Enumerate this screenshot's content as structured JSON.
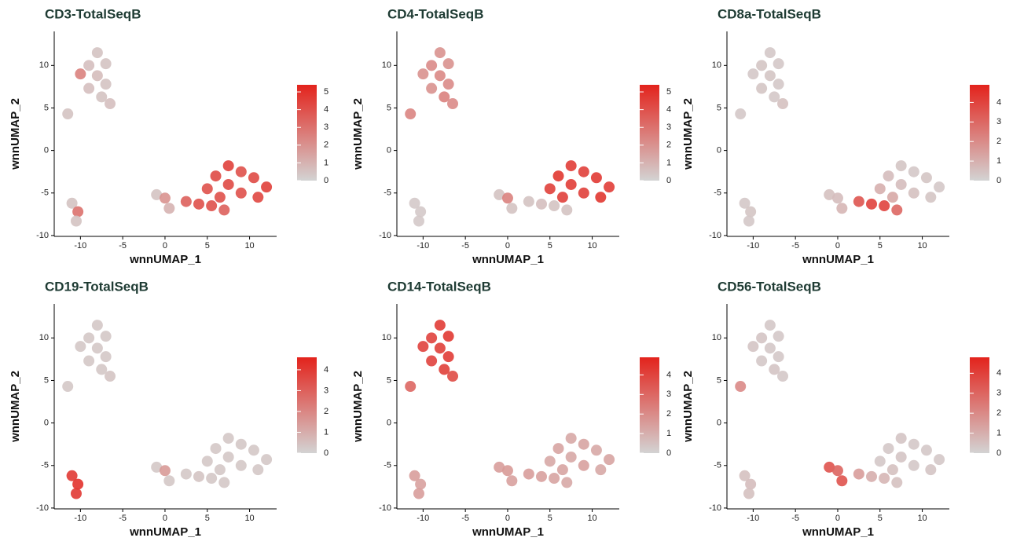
{
  "chart_data": [
    {
      "type": "scatter",
      "title": "CD3-TotalSeqB",
      "xlabel": "wnnUMAP_1",
      "ylabel": "wnnUMAP_2",
      "x": [
        -8,
        -9,
        -7,
        -8,
        -10,
        -7,
        -9,
        -7.5,
        -6.5,
        -11.5,
        -11,
        -10.3,
        -10.5,
        -1,
        0,
        0.5,
        2.5,
        4,
        5.5,
        7,
        5,
        6,
        7.5,
        9,
        10.5,
        12,
        11,
        9,
        7.5,
        6.5
      ],
      "y": [
        11.5,
        10,
        10.2,
        8.8,
        9,
        7.8,
        7.3,
        6.3,
        5.5,
        4.3,
        -6.2,
        -7.2,
        -8.3,
        -5.2,
        -5.6,
        -6.8,
        -6,
        -6.3,
        -6.5,
        -7,
        -4.5,
        -3,
        -1.8,
        -2.5,
        -3.2,
        -4.3,
        -5.5,
        -5,
        -4,
        -5.5
      ],
      "values": [
        0.5,
        0.6,
        0.5,
        0.7,
        2.5,
        0.5,
        0.6,
        0.5,
        0.6,
        0.5,
        0.5,
        3,
        0.5,
        0.5,
        2,
        1,
        3.5,
        4,
        4,
        3.5,
        4,
        4.2,
        4.5,
        4,
        4.2,
        4.5,
        4.3,
        4,
        4.2,
        4
      ],
      "xlim": [
        -13.1,
        13.2
      ],
      "ylim": [
        -10.1,
        14
      ],
      "xticks": [
        -10,
        -5,
        0,
        5,
        10
      ],
      "yticks": [
        -10,
        -5,
        0,
        5,
        10
      ],
      "clim": [
        0,
        5.4
      ],
      "cticks": [
        0,
        1,
        2,
        3,
        4,
        5
      ],
      "low_color": "#d3d3d3",
      "high_color": "#e3231c"
    },
    {
      "type": "scatter",
      "title": "CD4-TotalSeqB",
      "xlabel": "wnnUMAP_1",
      "ylabel": "wnnUMAP_2",
      "x": [
        -8,
        -9,
        -7,
        -8,
        -10,
        -7,
        -9,
        -7.5,
        -6.5,
        -11.5,
        -11,
        -10.3,
        -10.5,
        -1,
        0,
        0.5,
        2.5,
        4,
        5.5,
        7,
        5,
        6,
        7.5,
        9,
        10.5,
        12,
        11,
        9,
        7.5,
        6.5
      ],
      "y": [
        11.5,
        10,
        10.2,
        8.8,
        9,
        7.8,
        7.3,
        6.3,
        5.5,
        4.3,
        -6.2,
        -7.2,
        -8.3,
        -5.2,
        -5.6,
        -6.8,
        -6,
        -6.3,
        -6.5,
        -7,
        -4.5,
        -3,
        -1.8,
        -2.5,
        -3.2,
        -4.3,
        -5.5,
        -5,
        -4,
        -5.5
      ],
      "values": [
        2,
        2.2,
        2,
        2.3,
        2,
        2.2,
        2,
        2.5,
        2.2,
        2.4,
        0.3,
        0.3,
        0.3,
        0.5,
        2.5,
        0.5,
        0.5,
        0.6,
        0.5,
        0.5,
        4.5,
        4.8,
        4.6,
        4.5,
        4.7,
        4.6,
        4.8,
        4.5,
        4.6,
        4.5
      ],
      "xlim": [
        -13.1,
        13.2
      ],
      "ylim": [
        -10.1,
        14
      ],
      "xticks": [
        -10,
        -5,
        0,
        5,
        10
      ],
      "yticks": [
        -10,
        -5,
        0,
        5,
        10
      ],
      "clim": [
        0,
        5.4
      ],
      "cticks": [
        0,
        1,
        2,
        3,
        4,
        5
      ],
      "low_color": "#d3d3d3",
      "high_color": "#e3231c"
    },
    {
      "type": "scatter",
      "title": "CD8a-TotalSeqB",
      "xlabel": "wnnUMAP_1",
      "ylabel": "wnnUMAP_2",
      "x": [
        -8,
        -9,
        -7,
        -8,
        -10,
        -7,
        -9,
        -7.5,
        -6.5,
        -11.5,
        -11,
        -10.3,
        -10.5,
        -1,
        0,
        0.5,
        2.5,
        4,
        5.5,
        7,
        5,
        6,
        7.5,
        9,
        10.5,
        12,
        11,
        9,
        7.5,
        6.5
      ],
      "y": [
        11.5,
        10,
        10.2,
        8.8,
        9,
        7.8,
        7.3,
        6.3,
        5.5,
        4.3,
        -6.2,
        -7.2,
        -8.3,
        -5.2,
        -5.6,
        -6.8,
        -6,
        -6.3,
        -6.5,
        -7,
        -4.5,
        -3,
        -1.8,
        -2.5,
        -3.2,
        -4.3,
        -5.5,
        -5,
        -4,
        -5.5
      ],
      "values": [
        0.3,
        0.4,
        0.3,
        0.4,
        0.3,
        0.3,
        0.4,
        0.3,
        0.5,
        0.3,
        0.3,
        0.4,
        0.3,
        0.5,
        0.6,
        0.8,
        3.5,
        4,
        4,
        3,
        1,
        0.6,
        0.4,
        0.3,
        0.4,
        0.3,
        0.4,
        0.5,
        0.6,
        1.2
      ],
      "xlim": [
        -13.1,
        13.2
      ],
      "ylim": [
        -10.1,
        14
      ],
      "xticks": [
        -10,
        -5,
        0,
        5,
        10
      ],
      "yticks": [
        -10,
        -5,
        0,
        5,
        10
      ],
      "clim": [
        0,
        4.9
      ],
      "cticks": [
        0,
        1,
        2,
        3,
        4
      ],
      "low_color": "#d3d3d3",
      "high_color": "#e3231c"
    },
    {
      "type": "scatter",
      "title": "CD19-TotalSeqB",
      "xlabel": "wnnUMAP_1",
      "ylabel": "wnnUMAP_2",
      "x": [
        -8,
        -9,
        -7,
        -8,
        -10,
        -7,
        -9,
        -7.5,
        -6.5,
        -11.5,
        -11,
        -10.3,
        -10.5,
        -1,
        0,
        0.5,
        2.5,
        4,
        5.5,
        7,
        5,
        6,
        7.5,
        9,
        10.5,
        12,
        11,
        9,
        7.5,
        6.5
      ],
      "y": [
        11.5,
        10,
        10.2,
        8.8,
        9,
        7.8,
        7.3,
        6.3,
        5.5,
        4.3,
        -6.2,
        -7.2,
        -8.3,
        -5.2,
        -5.6,
        -6.8,
        -6,
        -6.3,
        -6.5,
        -7,
        -4.5,
        -3,
        -1.8,
        -2.5,
        -3.2,
        -4.3,
        -5.5,
        -5,
        -4,
        -5.5
      ],
      "values": [
        0.3,
        0.3,
        0.3,
        0.3,
        0.3,
        0.3,
        0.3,
        0.3,
        0.4,
        0.3,
        4,
        4.2,
        4,
        0.3,
        1.5,
        0.3,
        0.3,
        0.4,
        0.3,
        0.3,
        0.3,
        0.3,
        0.3,
        0.3,
        0.3,
        0.3,
        0.3,
        0.3,
        0.3,
        0.3
      ],
      "xlim": [
        -13.1,
        13.2
      ],
      "ylim": [
        -10.1,
        14
      ],
      "xticks": [
        -10,
        -5,
        0,
        5,
        10
      ],
      "yticks": [
        -10,
        -5,
        0,
        5,
        10
      ],
      "clim": [
        0,
        4.6
      ],
      "cticks": [
        0,
        1,
        2,
        3,
        4
      ],
      "low_color": "#d3d3d3",
      "high_color": "#e3231c"
    },
    {
      "type": "scatter",
      "title": "CD14-TotalSeqB",
      "xlabel": "wnnUMAP_1",
      "ylabel": "wnnUMAP_2",
      "x": [
        -8,
        -9,
        -7,
        -8,
        -10,
        -7,
        -9,
        -7.5,
        -6.5,
        -11.5,
        -11,
        -10.3,
        -10.5,
        -1,
        0,
        0.5,
        2.5,
        4,
        5.5,
        7,
        5,
        6,
        7.5,
        9,
        10.5,
        12,
        11,
        9,
        7.5,
        6.5
      ],
      "y": [
        11.5,
        10,
        10.2,
        8.8,
        9,
        7.8,
        7.3,
        6.3,
        5.5,
        4.3,
        -6.2,
        -7.2,
        -8.3,
        -5.2,
        -5.6,
        -6.8,
        -6,
        -6.3,
        -6.5,
        -7,
        -4.5,
        -3,
        -1.8,
        -2.5,
        -3.2,
        -4.3,
        -5.5,
        -5,
        -4,
        -5.5
      ],
      "values": [
        4.2,
        4,
        4.3,
        4.1,
        4,
        4.2,
        4,
        4.1,
        3.8,
        3,
        1.5,
        1.4,
        1.5,
        1.5,
        1.6,
        1.4,
        1.5,
        1.4,
        1.3,
        1.2,
        1.2,
        1.3,
        1.2,
        1.3,
        1.2,
        1.3,
        1.2,
        1.4,
        1.2,
        1.3
      ],
      "xlim": [
        -13.1,
        13.2
      ],
      "ylim": [
        -10.1,
        14
      ],
      "xticks": [
        -10,
        -5,
        0,
        5,
        10
      ],
      "yticks": [
        -10,
        -5,
        0,
        5,
        10
      ],
      "clim": [
        0,
        4.9
      ],
      "cticks": [
        0,
        1,
        2,
        3,
        4
      ],
      "low_color": "#d3d3d3",
      "high_color": "#e3231c"
    },
    {
      "type": "scatter",
      "title": "CD56-TotalSeqB",
      "xlabel": "wnnUMAP_1",
      "ylabel": "wnnUMAP_2",
      "x": [
        -8,
        -9,
        -7,
        -8,
        -10,
        -7,
        -9,
        -7.5,
        -6.5,
        -11.5,
        -11,
        -10.3,
        -10.5,
        -1,
        0,
        0.5,
        2.5,
        4,
        5.5,
        7,
        5,
        6,
        7.5,
        9,
        10.5,
        12,
        11,
        9,
        7.5,
        6.5
      ],
      "y": [
        11.5,
        10,
        10.2,
        8.8,
        9,
        7.8,
        7.3,
        6.3,
        5.5,
        4.3,
        -6.2,
        -7.2,
        -8.3,
        -5.2,
        -5.6,
        -6.8,
        -6,
        -6.3,
        -6.5,
        -7,
        -4.5,
        -3,
        -1.8,
        -2.5,
        -3.2,
        -4.3,
        -5.5,
        -5,
        -4,
        -5.5
      ],
      "values": [
        0.3,
        0.4,
        0.3,
        0.3,
        0.4,
        0.3,
        0.3,
        0.4,
        0.3,
        2,
        0.5,
        0.6,
        0.5,
        3.5,
        3,
        3.5,
        1.5,
        1,
        0.8,
        0.5,
        0.3,
        0.3,
        0.4,
        0.3,
        0.3,
        0.3,
        0.4,
        0.3,
        0.4,
        0.5
      ],
      "xlim": [
        -13.1,
        13.2
      ],
      "ylim": [
        -10.1,
        14
      ],
      "xticks": [
        -10,
        -5,
        0,
        5,
        10
      ],
      "yticks": [
        -10,
        -5,
        0,
        5,
        10
      ],
      "clim": [
        0,
        4.8
      ],
      "cticks": [
        0,
        1,
        2,
        3,
        4
      ],
      "low_color": "#d3d3d3",
      "high_color": "#e3231c"
    }
  ]
}
